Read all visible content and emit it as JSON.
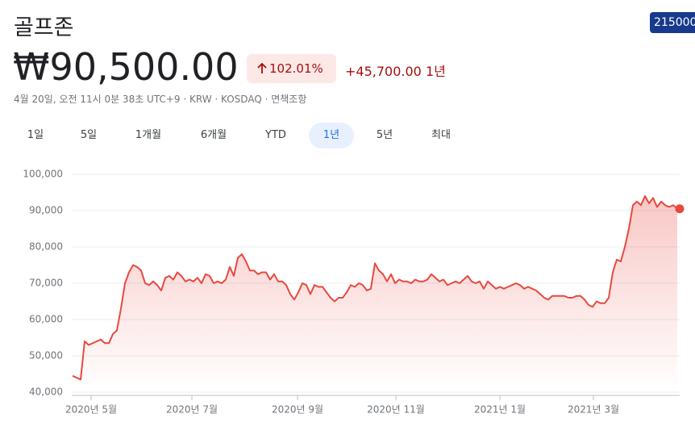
{
  "header": {
    "title": "골프존",
    "ticker": "215000",
    "price": "₩90,500.00",
    "change_percent": "102.01%",
    "change": "+45,700.00",
    "period": "1년",
    "meta": "4월 20일, 오전 11시 0분 38초 UTC+9 · KRW · KOSDAQ · 면책조항"
  },
  "tabs": {
    "items": [
      "1일",
      "5일",
      "1개월",
      "6개월",
      "YTD",
      "1년",
      "5년",
      "최대"
    ],
    "selected": 5
  },
  "chart_data": {
    "type": "line",
    "color": "#e8483f",
    "grid": true,
    "values": [
      44500,
      44000,
      43500,
      54000,
      53000,
      53500,
      54000,
      54500,
      53500,
      53500,
      56000,
      57000,
      63000,
      70000,
      73000,
      75000,
      74500,
      73500,
      70000,
      69500,
      70500,
      69500,
      68000,
      71500,
      72000,
      71000,
      73000,
      72000,
      70500,
      71000,
      70500,
      71500,
      70000,
      72500,
      72000,
      70000,
      70500,
      70000,
      71000,
      74500,
      72000,
      77000,
      78000,
      76000,
      73500,
      73500,
      72500,
      73000,
      73000,
      71000,
      72500,
      70500,
      70500,
      69500,
      67000,
      65500,
      67500,
      70000,
      69500,
      67000,
      69500,
      69000,
      69000,
      67500,
      66000,
      65000,
      66000,
      66000,
      67500,
      69500,
      69000,
      70000,
      69500,
      68000,
      68500,
      75500,
      73500,
      72500,
      70500,
      72500,
      70000,
      71000,
      70500,
      70500,
      70000,
      71000,
      70500,
      70500,
      71000,
      72500,
      71500,
      70500,
      71000,
      69500,
      70000,
      70500,
      70000,
      71000,
      72000,
      70500,
      70000,
      70500,
      68500,
      70500,
      69500,
      68500,
      69000,
      68500,
      69000,
      69500,
      70000,
      69500,
      68500,
      69000,
      68500,
      68000,
      67000,
      66000,
      65500,
      66500,
      66500,
      66500,
      66500,
      66000,
      66000,
      66500,
      66500,
      65500,
      64000,
      63500,
      65000,
      64500,
      64500,
      66000,
      73000,
      76500,
      76000,
      80000,
      85000,
      91500,
      92500,
      91500,
      94000,
      92000,
      93500,
      91000,
      92500,
      91500,
      91000,
      91500,
      90500
    ],
    "xlim": [
      0,
      150
    ],
    "xticks": [
      {
        "value": 4.6,
        "label": "2020년 5월"
      },
      {
        "value": 29.6,
        "label": "2020년 7월"
      },
      {
        "value": 55.8,
        "label": "2020년 9월"
      },
      {
        "value": 80.2,
        "label": "2020년 11월"
      },
      {
        "value": 106,
        "label": "2021년 1월"
      },
      {
        "value": 129.2,
        "label": "2021년 3월"
      }
    ],
    "ylim": [
      40000,
      100000
    ],
    "yticks": [
      {
        "value": 40000,
        "label": "40,000"
      },
      {
        "value": 50000,
        "label": "50,000"
      },
      {
        "value": 60000,
        "label": "60,000"
      },
      {
        "value": 70000,
        "label": "70,000"
      },
      {
        "value": 80000,
        "label": "80,000"
      },
      {
        "value": 90000,
        "label": "90,000"
      },
      {
        "value": 100000,
        "label": "100,000"
      }
    ]
  }
}
